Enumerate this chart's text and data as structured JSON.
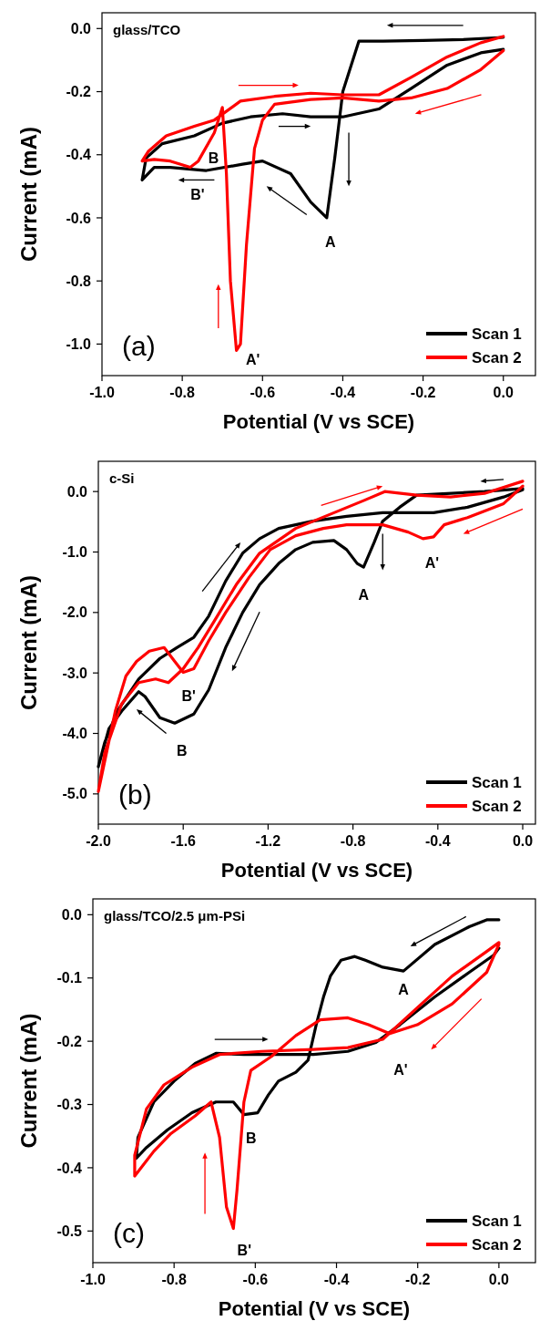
{
  "chart_data": [
    {
      "type": "line",
      "title": "glass/TCO",
      "xlabel": "Potential (V vs SCE)",
      "ylabel": "Current (mA)",
      "xlim": [
        -1.0,
        0.08
      ],
      "ylim": [
        -1.1,
        0.05
      ],
      "xticks": [
        {
          "value": -1.0,
          "label": "-1.0"
        },
        {
          "value": -0.8,
          "label": "-0.8"
        },
        {
          "value": -0.6,
          "label": "-0.6"
        },
        {
          "value": -0.4,
          "label": "-0.4"
        },
        {
          "value": -0.2,
          "label": "-0.2"
        },
        {
          "value": 0,
          "label": "0.0"
        }
      ],
      "yticks": [
        {
          "value": 0,
          "label": "0.0"
        },
        {
          "value": -0.2,
          "label": "-0.2"
        },
        {
          "value": -0.4,
          "label": "-0.4"
        },
        {
          "value": -0.6,
          "label": "-0.6"
        },
        {
          "value": -0.8,
          "label": "-0.8"
        },
        {
          "value": -1.0,
          "label": "-1.0"
        }
      ],
      "legend": "bottom right",
      "grid": false,
      "series": [
        {
          "name": "Scan 1",
          "color": "#000000",
          "x": [
            0,
            -0.1,
            -0.2,
            -0.3,
            -0.36,
            -0.4,
            -0.42,
            -0.44,
            -0.48,
            -0.53,
            -0.6,
            -0.65,
            -0.74,
            -0.83,
            -0.87,
            -0.9,
            -0.89,
            -0.85,
            -0.77,
            -0.7,
            -0.63,
            -0.55,
            -0.48,
            -0.4,
            -0.31,
            -0.23,
            -0.14,
            -0.056,
            0
          ],
          "values": [
            -0.028,
            -0.035,
            -0.038,
            -0.04,
            -0.04,
            -0.2,
            -0.41,
            -0.6,
            -0.55,
            -0.46,
            -0.42,
            -0.43,
            -0.45,
            -0.44,
            -0.44,
            -0.48,
            -0.41,
            -0.365,
            -0.34,
            -0.3,
            -0.28,
            -0.27,
            -0.28,
            -0.28,
            -0.255,
            -0.19,
            -0.116,
            -0.077,
            -0.066
          ]
        },
        {
          "name": "Scan 2",
          "color": "#ff0000",
          "x": [
            0,
            -0.056,
            -0.14,
            -0.23,
            -0.31,
            -0.4,
            -0.48,
            -0.57,
            -0.6,
            -0.62,
            -0.64,
            -0.655,
            -0.665,
            -0.68,
            -0.69,
            -0.7,
            -0.72,
            -0.76,
            -0.78,
            -0.83,
            -0.87,
            -0.9,
            -0.885,
            -0.84,
            -0.77,
            -0.72,
            -0.655,
            -0.57,
            -0.48,
            -0.4,
            -0.31,
            -0.23,
            -0.14,
            -0.056,
            0
          ],
          "values": [
            -0.07,
            -0.13,
            -0.19,
            -0.22,
            -0.23,
            -0.22,
            -0.225,
            -0.24,
            -0.29,
            -0.38,
            -0.685,
            -1.0,
            -1.02,
            -0.8,
            -0.46,
            -0.25,
            -0.33,
            -0.42,
            -0.44,
            -0.42,
            -0.415,
            -0.42,
            -0.39,
            -0.34,
            -0.31,
            -0.29,
            -0.23,
            -0.215,
            -0.205,
            -0.21,
            -0.21,
            -0.155,
            -0.09,
            -0.045,
            -0.025
          ]
        }
      ],
      "annotations": [
        "(a)",
        {
          "text": "A",
          "x": -0.44,
          "y": -0.6
        },
        {
          "text": "A'",
          "x": -0.665,
          "y": -1.02
        },
        {
          "text": "B",
          "x": -0.74,
          "y": -0.45
        },
        {
          "text": "B'",
          "x": -0.78,
          "y": -0.44
        }
      ]
    },
    {
      "type": "line",
      "title": "c-Si",
      "xlabel": "Potential (V vs SCE)",
      "ylabel": "Current (mA)",
      "xlim": [
        -2.0,
        0.06
      ],
      "ylim": [
        -5.5,
        0.5
      ],
      "xticks": [
        {
          "value": -2.0,
          "label": "-2.0"
        },
        {
          "value": -1.6,
          "label": "-1.6"
        },
        {
          "value": -1.2,
          "label": "-1.2"
        },
        {
          "value": -0.8,
          "label": "-0.8"
        },
        {
          "value": -0.4,
          "label": "-0.4"
        },
        {
          "value": 0,
          "label": "0.0"
        }
      ],
      "yticks": [
        {
          "value": 0,
          "label": "0.0"
        },
        {
          "value": -1,
          "label": "-1.0"
        },
        {
          "value": -2,
          "label": "-2.0"
        },
        {
          "value": -3,
          "label": "-3.0"
        },
        {
          "value": -4,
          "label": "-4.0"
        },
        {
          "value": -5,
          "label": "-5.0"
        }
      ],
      "legend": "bottom right",
      "grid": false,
      "series": [
        {
          "name": "Scan 1",
          "color": "#000000",
          "x": [
            0,
            -0.18,
            -0.5,
            -0.58,
            -0.66,
            -0.7,
            -0.75,
            -0.78,
            -0.83,
            -0.89,
            -0.99,
            -1.07,
            -1.15,
            -1.24,
            -1.32,
            -1.4,
            -1.48,
            -1.55,
            -1.64,
            -1.71,
            -1.78,
            -1.81,
            -1.89,
            -1.95,
            -2.0,
            -1.97,
            -1.91,
            -1.81,
            -1.71,
            -1.63,
            -1.55,
            -1.48,
            -1.4,
            -1.32,
            -1.24,
            -1.15,
            -0.99,
            -0.83,
            -0.66,
            -0.42,
            -0.26,
            -0.09,
            0
          ],
          "values": [
            0.05,
            0,
            -0.06,
            -0.26,
            -0.49,
            -0.84,
            -1.25,
            -1.19,
            -0.96,
            -0.81,
            -0.84,
            -0.96,
            -1.19,
            -1.54,
            -2.0,
            -2.58,
            -3.28,
            -3.68,
            -3.83,
            -3.74,
            -3.39,
            -3.31,
            -3.63,
            -3.92,
            -4.55,
            -4.15,
            -3.63,
            -3.1,
            -2.76,
            -2.58,
            -2.41,
            -2.06,
            -1.48,
            -1.02,
            -0.78,
            -0.61,
            -0.49,
            -0.41,
            -0.35,
            -0.35,
            -0.26,
            -0.09,
            0.03
          ]
        },
        {
          "name": "Scan 2",
          "color": "#ff0000",
          "x": [
            0,
            -0.09,
            -0.26,
            -0.37,
            -0.42,
            -0.47,
            -0.54,
            -0.66,
            -0.83,
            -0.94,
            -1.07,
            -1.19,
            -1.29,
            -1.4,
            -1.48,
            -1.55,
            -1.6,
            -1.64,
            -1.69,
            -1.76,
            -1.82,
            -1.87,
            -1.92,
            -2.0,
            -1.97,
            -1.89,
            -1.81,
            -1.73,
            -1.67,
            -1.6,
            -1.53,
            -1.45,
            -1.35,
            -1.24,
            -1.07,
            -0.91,
            -0.75,
            -0.65,
            -0.5,
            -0.34,
            -0.18,
            0
          ],
          "values": [
            0.09,
            -0.2,
            -0.43,
            -0.55,
            -0.75,
            -0.78,
            -0.67,
            -0.55,
            -0.55,
            -0.61,
            -0.73,
            -0.96,
            -1.42,
            -2.0,
            -2.47,
            -2.93,
            -2.99,
            -2.81,
            -2.58,
            -2.64,
            -2.81,
            -3.05,
            -3.63,
            -4.96,
            -4.32,
            -3.51,
            -3.16,
            -3.1,
            -3.16,
            -2.93,
            -2.58,
            -2.12,
            -1.54,
            -1.02,
            -0.61,
            -0.38,
            -0.15,
            0,
            -0.06,
            -0.09,
            -0.03,
            0.17
          ]
        }
      ],
      "annotations": [
        "(b)",
        {
          "text": "A",
          "x": -0.75,
          "y": -1.25
        },
        {
          "text": "A'",
          "x": -0.47,
          "y": -0.78
        },
        {
          "text": "B",
          "x": -1.64,
          "y": -3.83
        },
        {
          "text": "B'",
          "x": -1.6,
          "y": -2.99
        }
      ]
    },
    {
      "type": "line",
      "title": "glass/TCO/2.5 μm-PSi",
      "xlabel": "Potential (V vs SCE)",
      "ylabel": "Current (mA)",
      "xlim": [
        -1.0,
        0.09
      ],
      "ylim": [
        -0.55,
        0.025
      ],
      "xticks": [
        {
          "value": -1.0,
          "label": "-1.0"
        },
        {
          "value": -0.8,
          "label": "-0.8"
        },
        {
          "value": -0.6,
          "label": "-0.6"
        },
        {
          "value": -0.4,
          "label": "-0.4"
        },
        {
          "value": -0.2,
          "label": "-0.2"
        },
        {
          "value": 0,
          "label": "0.0"
        }
      ],
      "yticks": [
        {
          "value": 0,
          "label": "0.0"
        },
        {
          "value": -0.1,
          "label": "-0.1"
        },
        {
          "value": -0.2,
          "label": "-0.2"
        },
        {
          "value": -0.3,
          "label": "-0.3"
        },
        {
          "value": -0.4,
          "label": "-0.4"
        },
        {
          "value": -0.5,
          "label": "-0.5"
        }
      ],
      "legend": "bottom right",
      "grid": false,
      "series": [
        {
          "name": "Scan 1",
          "color": "#000000",
          "x": [
            0,
            -0.03,
            -0.073,
            -0.158,
            -0.235,
            -0.286,
            -0.329,
            -0.355,
            -0.389,
            -0.415,
            -0.432,
            -0.45,
            -0.47,
            -0.5,
            -0.543,
            -0.568,
            -0.594,
            -0.628,
            -0.654,
            -0.697,
            -0.756,
            -0.816,
            -0.868,
            -0.893,
            -0.889,
            -0.85,
            -0.8,
            -0.748,
            -0.697,
            -0.628,
            -0.543,
            -0.457,
            -0.372,
            -0.303,
            -0.244,
            -0.158,
            -0.073,
            -0.013,
            0
          ],
          "values": [
            -0.008,
            -0.008,
            -0.019,
            -0.047,
            -0.089,
            -0.083,
            -0.072,
            -0.066,
            -0.072,
            -0.097,
            -0.13,
            -0.174,
            -0.23,
            -0.249,
            -0.263,
            -0.285,
            -0.313,
            -0.316,
            -0.296,
            -0.296,
            -0.313,
            -0.34,
            -0.368,
            -0.385,
            -0.352,
            -0.296,
            -0.263,
            -0.235,
            -0.219,
            -0.221,
            -0.221,
            -0.221,
            -0.216,
            -0.202,
            -0.174,
            -0.13,
            -0.091,
            -0.064,
            -0.053
          ]
        },
        {
          "name": "Scan 2",
          "color": "#ff0000",
          "x": [
            0,
            -0.03,
            -0.115,
            -0.201,
            -0.269,
            -0.321,
            -0.372,
            -0.44,
            -0.5,
            -0.56,
            -0.611,
            -0.628,
            -0.645,
            -0.654,
            -0.671,
            -0.688,
            -0.709,
            -0.748,
            -0.808,
            -0.85,
            -0.897,
            -0.897,
            -0.868,
            -0.825,
            -0.756,
            -0.688,
            -0.585,
            -0.457,
            -0.372,
            -0.286,
            -0.201,
            -0.115,
            -0.03,
            0
          ],
          "values": [
            -0.047,
            -0.091,
            -0.141,
            -0.174,
            -0.188,
            -0.174,
            -0.163,
            -0.166,
            -0.191,
            -0.224,
            -0.246,
            -0.296,
            -0.435,
            -0.496,
            -0.462,
            -0.352,
            -0.296,
            -0.318,
            -0.346,
            -0.374,
            -0.413,
            -0.38,
            -0.307,
            -0.269,
            -0.241,
            -0.221,
            -0.216,
            -0.213,
            -0.21,
            -0.197,
            -0.147,
            -0.097,
            -0.058,
            -0.044
          ]
        }
      ],
      "annotations": [
        "(c)",
        {
          "text": "A",
          "x": -0.235,
          "y": -0.089
        },
        {
          "text": "A'",
          "x": -0.269,
          "y": -0.188
        },
        {
          "text": "B",
          "x": -0.628,
          "y": -0.316
        },
        {
          "text": "B'",
          "x": -0.654,
          "y": -0.496
        }
      ]
    }
  ]
}
